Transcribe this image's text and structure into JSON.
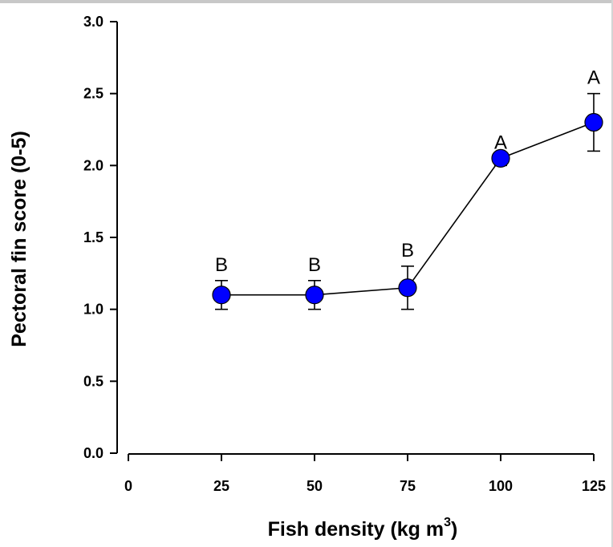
{
  "chart_data": {
    "type": "line",
    "title": "",
    "xlabel": "Fish density (kg m",
    "xlabel_superscript": "3",
    "xlabel_suffix": ")",
    "ylabel": "Pectoral fin score (0-5)",
    "xlim": [
      0,
      125
    ],
    "ylim": [
      0,
      3.0
    ],
    "x_ticks": [
      0,
      25,
      50,
      75,
      100,
      125
    ],
    "x_tick_labels": [
      "0",
      "25",
      "50",
      "75",
      "100",
      "125"
    ],
    "y_ticks": [
      0,
      0.5,
      1.0,
      1.5,
      2.0,
      2.5,
      3.0
    ],
    "y_tick_labels": [
      "0.0",
      "0.5",
      "1.0",
      "1.5",
      "2.0",
      "2.5",
      "3.0"
    ],
    "grid": false,
    "marker_color": "#0000ff",
    "series": [
      {
        "x": [
          25,
          50,
          75,
          100,
          125
        ],
        "y": [
          1.1,
          1.1,
          1.15,
          2.05,
          2.3
        ],
        "error_upper": [
          0.1,
          0.1,
          0.15,
          0.0,
          0.2
        ],
        "error_lower": [
          0.1,
          0.1,
          0.15,
          0.05,
          0.2
        ],
        "annotations": [
          "B",
          "B",
          "B",
          "A",
          "A"
        ]
      }
    ]
  }
}
